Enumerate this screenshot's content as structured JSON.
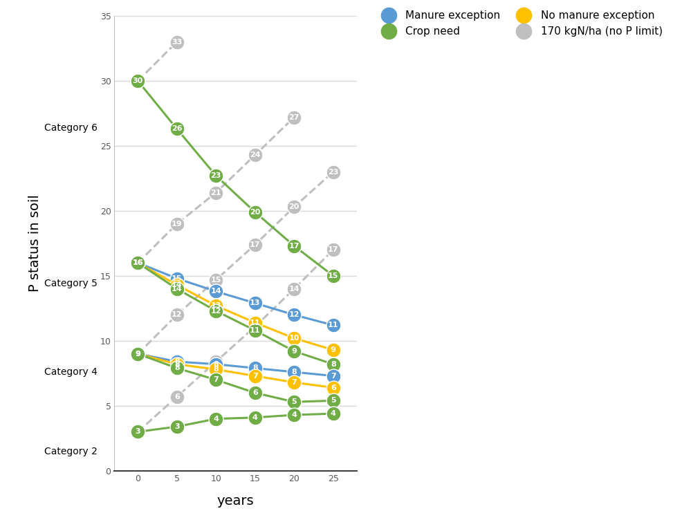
{
  "chart_data": {
    "type": "line",
    "x_label": "years",
    "y_label": "P status in soil",
    "x": [
      0,
      5,
      10,
      15,
      20,
      25
    ],
    "xlim": [
      -3,
      28
    ],
    "xticks": [
      0,
      5,
      10,
      15,
      20,
      25
    ],
    "ylim": [
      0,
      35
    ],
    "yticks": [
      0,
      5,
      10,
      15,
      20,
      25,
      30,
      35
    ],
    "grid": true,
    "legend": "upper right",
    "data_labels": true,
    "annotations": [
      {
        "text": "Category 6",
        "y": 26.4
      },
      {
        "text": "Category 5",
        "y": 14.4
      },
      {
        "text": "Category 4",
        "y": 7.6
      },
      {
        "text": "Category 2",
        "y": 1.5
      }
    ],
    "series": [
      {
        "name": "Manure exception",
        "color": "#5B9BD5",
        "marker": "o",
        "line_style": "solid",
        "values": [
          16,
          14.8,
          13.8,
          12.9,
          12,
          11.2
        ],
        "value_labels": [
          "16",
          "15",
          "14",
          "13",
          "12",
          "11"
        ]
      },
      {
        "name": "Crop need",
        "color": "#70AD47",
        "marker": "o",
        "line_style": "solid",
        "values": [
          30,
          26.3,
          22.7,
          19.9,
          17.3,
          15
        ],
        "value_labels": [
          "30",
          "26",
          "23",
          "20",
          "17",
          "15"
        ]
      },
      {
        "name": "No manure exception",
        "color": "#FFC000",
        "marker": "o",
        "line_style": "solid",
        "values": [
          16,
          14.3,
          12.7,
          11.4,
          10.2,
          9.3
        ],
        "value_labels": [
          "16",
          "14",
          "13",
          "11",
          "10",
          "9"
        ]
      },
      {
        "name": "170 kgN/ha (no P limit)",
        "color": "#BFBFBF",
        "marker": "o",
        "line_style": "dashed",
        "values": [
          30,
          33,
          null,
          null,
          null,
          null
        ],
        "value_labels": [
          "30",
          "33",
          null,
          null,
          null,
          null
        ]
      },
      {
        "name": "170 kgN/ha (no P limit)",
        "color": "#BFBFBF",
        "marker": "o",
        "line_style": "dashed",
        "values": [
          16,
          19,
          21.4,
          24.3,
          27.2,
          null
        ],
        "value_labels": [
          "16",
          "19",
          "21",
          "24",
          "27",
          null
        ]
      },
      {
        "name": "170 kgN/ha (no P limit)",
        "color": "#BFBFBF",
        "marker": "o",
        "line_style": "dashed",
        "values": [
          9,
          12,
          14.7,
          17.4,
          20.3,
          23
        ],
        "value_labels": [
          "9",
          "12",
          "15",
          "17",
          "20",
          "23"
        ]
      },
      {
        "name": "170 kgN/ha (no P limit)",
        "color": "#BFBFBF",
        "marker": "o",
        "line_style": "dashed",
        "values": [
          3,
          5.7,
          8.4,
          11.1,
          14,
          17
        ],
        "value_labels": [
          "3",
          "6",
          "8",
          "11",
          "14",
          "17"
        ]
      },
      {
        "name": "Crop need",
        "color": "#70AD47",
        "marker": "o",
        "line_style": "solid",
        "values": [
          16,
          14,
          12.3,
          10.8,
          9.2,
          8.2
        ],
        "value_labels": [
          "16",
          "14",
          "12",
          "11",
          "9",
          "8"
        ]
      },
      {
        "name": "Manure exception",
        "color": "#5B9BD5",
        "marker": "o",
        "line_style": "solid",
        "values": [
          9,
          8.4,
          8.2,
          7.9,
          7.6,
          7.3
        ],
        "value_labels": [
          "9",
          "8",
          "8",
          "8",
          "8",
          "7"
        ]
      },
      {
        "name": "No manure exception",
        "color": "#FFC000",
        "marker": "o",
        "line_style": "solid",
        "values": [
          9,
          8.2,
          7.8,
          7.3,
          6.8,
          6.4
        ],
        "value_labels": [
          "9",
          "8",
          "8",
          "7",
          "7",
          "6"
        ]
      },
      {
        "name": "Crop need",
        "color": "#70AD47",
        "marker": "o",
        "line_style": "solid",
        "values": [
          9,
          7.9,
          7,
          6,
          5.3,
          5.4
        ],
        "value_labels": [
          "9",
          "8",
          "7",
          "6",
          "5",
          "5"
        ]
      },
      {
        "name": "Crop need",
        "color": "#70AD47",
        "marker": "o",
        "line_style": "solid",
        "values": [
          3,
          3.4,
          4,
          4.1,
          4.3,
          4.4
        ],
        "value_labels": [
          "3",
          "3",
          "4",
          "4",
          "4",
          "4"
        ]
      }
    ]
  }
}
